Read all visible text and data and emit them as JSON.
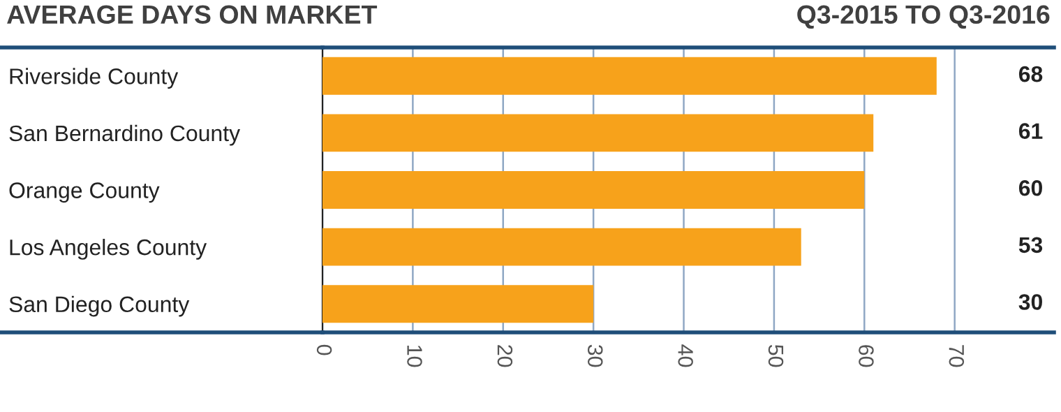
{
  "chart_data": {
    "type": "bar",
    "orientation": "horizontal",
    "title": "AVERAGE DAYS ON MARKET",
    "subtitle": "Q3-2015 TO Q3-2016",
    "categories": [
      "Riverside County",
      "San Bernardino County",
      "Orange County",
      "Los Angeles County",
      "San Diego County"
    ],
    "values": [
      68,
      61,
      60,
      53,
      30
    ],
    "color": "#f7a21b",
    "xlim": [
      0,
      81
    ],
    "xticks": [
      0,
      10,
      20,
      30,
      40,
      50,
      60,
      70
    ],
    "grid": "x",
    "data_labels": true
  }
}
